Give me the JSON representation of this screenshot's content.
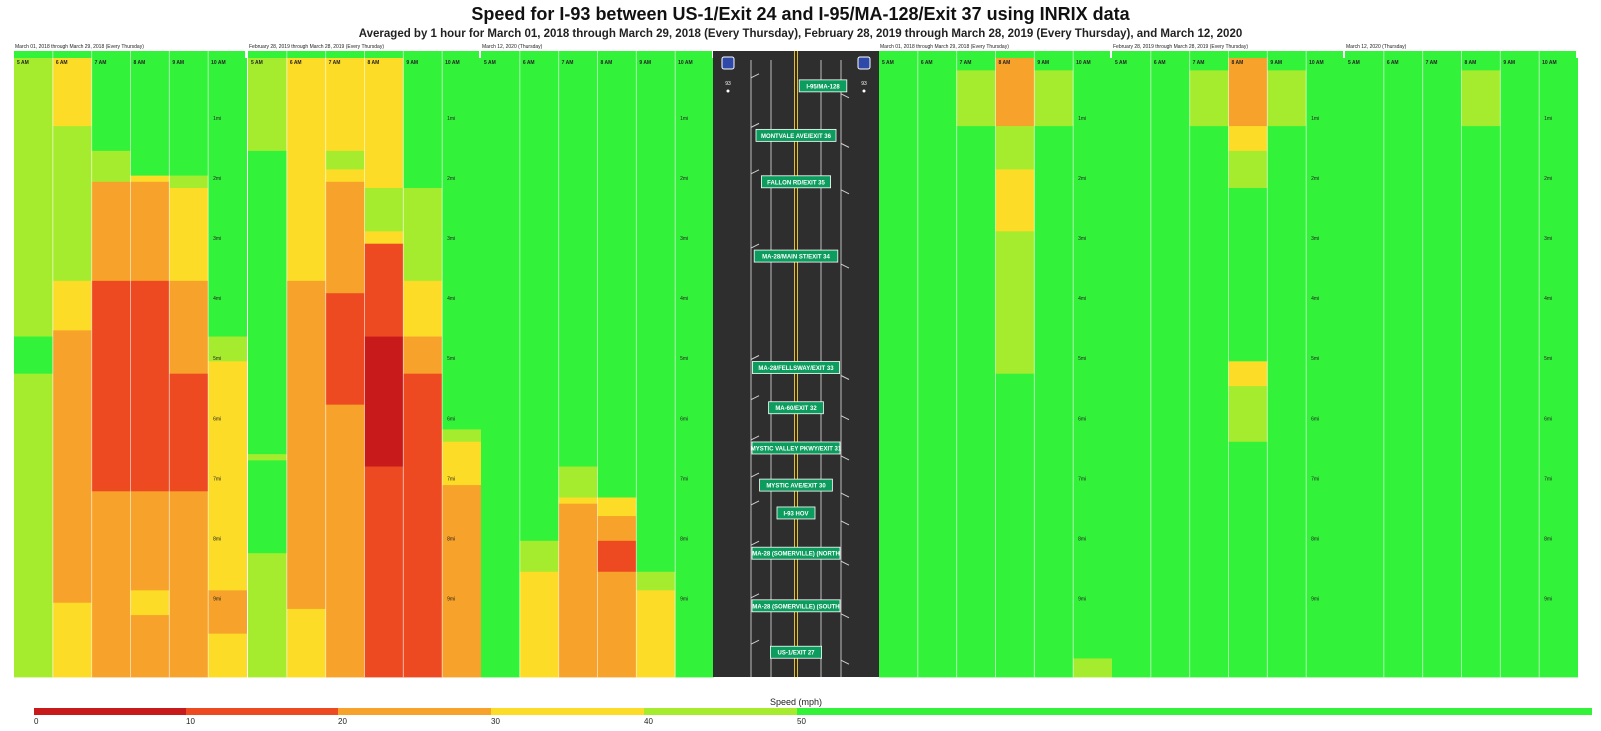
{
  "title": "Speed for I-93 between US-1/Exit 24 and I-95/MA-128/Exit 37 using INRIX data",
  "subtitle": "Averaged by 1 hour for March 01, 2018 through March 29, 2018 (Every Thursday), February 28, 2019 through March 28, 2019 (Every Thursday), and March 12, 2020",
  "colors": {
    "0-10": "#c81a1a",
    "10-20": "#ee4a22",
    "20-30": "#f7a22a",
    "30-40": "#fddc28",
    "40-50": "#a6ec2e",
    "50+": "#33f23a",
    "road": "#2e2e2e",
    "exit_sign": "#0b9c5e"
  },
  "chart_data": {
    "type": "heatmap",
    "value_unit": "Speed (mph)",
    "legend": {
      "title": "Speed (mph)",
      "ticks": [
        "0",
        "10",
        "20",
        "30",
        "40",
        "50"
      ]
    },
    "hours": [
      "5 AM",
      "6 AM",
      "7 AM",
      "8 AM",
      "9 AM",
      "10 AM"
    ],
    "mile_labels": [
      "1mi",
      "2mi",
      "3mi",
      "4mi",
      "5mi",
      "6mi",
      "7mi",
      "8mi",
      "9mi"
    ],
    "road": {
      "shields": [
        "93",
        "93"
      ],
      "exits": [
        {
          "label": "I-95/MA-128",
          "mile": 0.45
        },
        {
          "label": "MONTVALE AVE/EXIT 36",
          "mile": 1.25
        },
        {
          "label": "FALLON RD/EXIT 35",
          "mile": 2.0
        },
        {
          "label": "MA-28/MAIN ST/EXIT 34",
          "mile": 3.2
        },
        {
          "label": "MA-28/FELLSWAY/EXIT 33",
          "mile": 5.0
        },
        {
          "label": "MA-60/EXIT 32",
          "mile": 5.65
        },
        {
          "label": "MYSTIC VALLEY PKWY/EXIT 31",
          "mile": 6.3
        },
        {
          "label": "MYSTIC AVE/EXIT 30",
          "mile": 6.9
        },
        {
          "label": "I-93 HOV",
          "mile": 7.35
        },
        {
          "label": "MA-28 (SOMERVILLE) (NORTH",
          "mile": 8.0
        },
        {
          "label": "MA-28 (SOMERVILLE) (SOUTH",
          "mile": 8.85
        },
        {
          "label": "US-1/EXIT 27",
          "mile": 9.6
        }
      ]
    },
    "panels": [
      {
        "label": "March 01, 2018 through March 29, 2018 (Every Thursday)",
        "columns": [
          [
            [
              0,
              4.5,
              45
            ],
            [
              4.5,
              5.1,
              55
            ],
            [
              5.1,
              10,
              45
            ]
          ],
          [
            [
              0,
              1.1,
              35
            ],
            [
              1.1,
              3.6,
              45
            ],
            [
              3.6,
              4.4,
              35
            ],
            [
              4.4,
              7.5,
              25
            ],
            [
              7.5,
              8.8,
              25
            ],
            [
              8.8,
              10,
              35
            ]
          ],
          [
            [
              0,
              1.5,
              55
            ],
            [
              1.5,
              2.0,
              45
            ],
            [
              2.0,
              3.6,
              25
            ],
            [
              3.6,
              7.0,
              15
            ],
            [
              7.0,
              10,
              25
            ]
          ],
          [
            [
              0,
              1.9,
              55
            ],
            [
              1.9,
              2.0,
              35
            ],
            [
              2.0,
              3.6,
              25
            ],
            [
              3.6,
              7.0,
              15
            ],
            [
              7.0,
              8.6,
              25
            ],
            [
              8.6,
              9.0,
              35
            ],
            [
              9.0,
              10,
              25
            ]
          ],
          [
            [
              0,
              1.9,
              55
            ],
            [
              1.9,
              2.1,
              45
            ],
            [
              2.1,
              3.6,
              35
            ],
            [
              3.6,
              4.1,
              25
            ],
            [
              4.1,
              5.1,
              25
            ],
            [
              5.1,
              7.0,
              15
            ],
            [
              7.0,
              10,
              25
            ]
          ],
          [
            [
              0,
              4.1,
              55
            ],
            [
              4.1,
              4.5,
              55
            ],
            [
              4.5,
              4.9,
              45
            ],
            [
              4.9,
              8.6,
              35
            ],
            [
              8.6,
              9.3,
              25
            ],
            [
              9.3,
              10,
              35
            ]
          ]
        ]
      },
      {
        "label": "February 28, 2019 through March 28, 2019 (Every Thursday)",
        "columns": [
          [
            [
              0,
              1.5,
              45
            ],
            [
              1.5,
              6.4,
              55
            ],
            [
              6.4,
              6.5,
              45
            ],
            [
              6.5,
              8.0,
              55
            ],
            [
              8.0,
              10,
              45
            ]
          ],
          [
            [
              0,
              3.6,
              35
            ],
            [
              3.6,
              5.7,
              25
            ],
            [
              5.7,
              8.0,
              25
            ],
            [
              8.0,
              8.9,
              25
            ],
            [
              8.9,
              10,
              35
            ]
          ],
          [
            [
              0,
              1.5,
              35
            ],
            [
              1.5,
              1.8,
              45
            ],
            [
              1.8,
              2.0,
              35
            ],
            [
              2.0,
              3.8,
              25
            ],
            [
              3.8,
              5.6,
              15
            ],
            [
              5.6,
              10,
              25
            ]
          ],
          [
            [
              0,
              2.1,
              35
            ],
            [
              2.1,
              2.8,
              45
            ],
            [
              2.8,
              3.0,
              35
            ],
            [
              3.0,
              4.5,
              15
            ],
            [
              4.5,
              6.6,
              5
            ],
            [
              6.6,
              10,
              15
            ]
          ],
          [
            [
              0,
              2.1,
              55
            ],
            [
              2.1,
              3.6,
              45
            ],
            [
              3.6,
              4.5,
              35
            ],
            [
              4.5,
              5.1,
              25
            ],
            [
              5.1,
              10,
              15
            ]
          ],
          [
            [
              0,
              6.0,
              55
            ],
            [
              6.0,
              6.2,
              45
            ],
            [
              6.2,
              6.9,
              35
            ],
            [
              6.9,
              8.9,
              25
            ],
            [
              8.9,
              10,
              25
            ]
          ]
        ]
      },
      {
        "label": "March 12, 2020 (Thursday)",
        "columns": [
          [
            [
              0,
              10,
              55
            ]
          ],
          [
            [
              0,
              7.8,
              55
            ],
            [
              7.8,
              8.3,
              45
            ],
            [
              8.3,
              10,
              35
            ]
          ],
          [
            [
              0,
              6.6,
              55
            ],
            [
              6.6,
              7.1,
              45
            ],
            [
              7.1,
              7.2,
              35
            ],
            [
              7.2,
              10,
              25
            ]
          ],
          [
            [
              0,
              7.1,
              55
            ],
            [
              7.1,
              7.4,
              35
            ],
            [
              7.4,
              7.8,
              25
            ],
            [
              7.8,
              8.3,
              15
            ],
            [
              8.3,
              10,
              25
            ]
          ],
          [
            [
              0,
              8.3,
              55
            ],
            [
              8.3,
              8.6,
              45
            ],
            [
              8.6,
              10,
              35
            ]
          ],
          [
            [
              0,
              10,
              55
            ]
          ]
        ]
      },
      {
        "label": "March 01, 2018 through March 29, 2018 (Every Thursday)",
        "columns": [
          [
            [
              0,
              10,
              55
            ]
          ],
          [
            [
              0,
              10,
              55
            ]
          ],
          [
            [
              0,
              0.2,
              55
            ],
            [
              0.2,
              1.1,
              45
            ],
            [
              1.1,
              10,
              55
            ]
          ],
          [
            [
              0,
              1.1,
              25
            ],
            [
              1.1,
              1.8,
              45
            ],
            [
              1.8,
              2.8,
              35
            ],
            [
              2.8,
              5.1,
              45
            ],
            [
              5.1,
              10,
              55
            ]
          ],
          [
            [
              0,
              0.2,
              55
            ],
            [
              0.2,
              1.1,
              45
            ],
            [
              1.1,
              10,
              55
            ]
          ],
          [
            [
              0,
              9.7,
              55
            ],
            [
              9.7,
              10,
              45
            ]
          ]
        ]
      },
      {
        "label": "February 28, 2019 through March 28, 2019 (Every Thursday)",
        "columns": [
          [
            [
              0,
              10,
              55
            ]
          ],
          [
            [
              0,
              10,
              55
            ]
          ],
          [
            [
              0,
              0.2,
              55
            ],
            [
              0.2,
              1.1,
              45
            ],
            [
              1.1,
              10,
              55
            ]
          ],
          [
            [
              0,
              1.1,
              25
            ],
            [
              1.1,
              1.5,
              35
            ],
            [
              1.5,
              2.1,
              45
            ],
            [
              2.1,
              4.9,
              55
            ],
            [
              4.9,
              5.3,
              35
            ],
            [
              5.3,
              6.2,
              45
            ],
            [
              6.2,
              10,
              55
            ]
          ],
          [
            [
              0,
              0.2,
              55
            ],
            [
              0.2,
              1.1,
              45
            ],
            [
              1.1,
              10,
              55
            ]
          ],
          [
            [
              0,
              10,
              55
            ]
          ]
        ]
      },
      {
        "label": "March 12, 2020 (Thursday)",
        "columns": [
          [
            [
              0,
              10,
              55
            ]
          ],
          [
            [
              0,
              10,
              55
            ]
          ],
          [
            [
              0,
              10,
              55
            ]
          ],
          [
            [
              0,
              0.2,
              55
            ],
            [
              0.2,
              1.1,
              45
            ],
            [
              1.1,
              10,
              55
            ]
          ],
          [
            [
              0,
              10,
              55
            ]
          ],
          [
            [
              0,
              10,
              55
            ]
          ]
        ]
      }
    ]
  }
}
